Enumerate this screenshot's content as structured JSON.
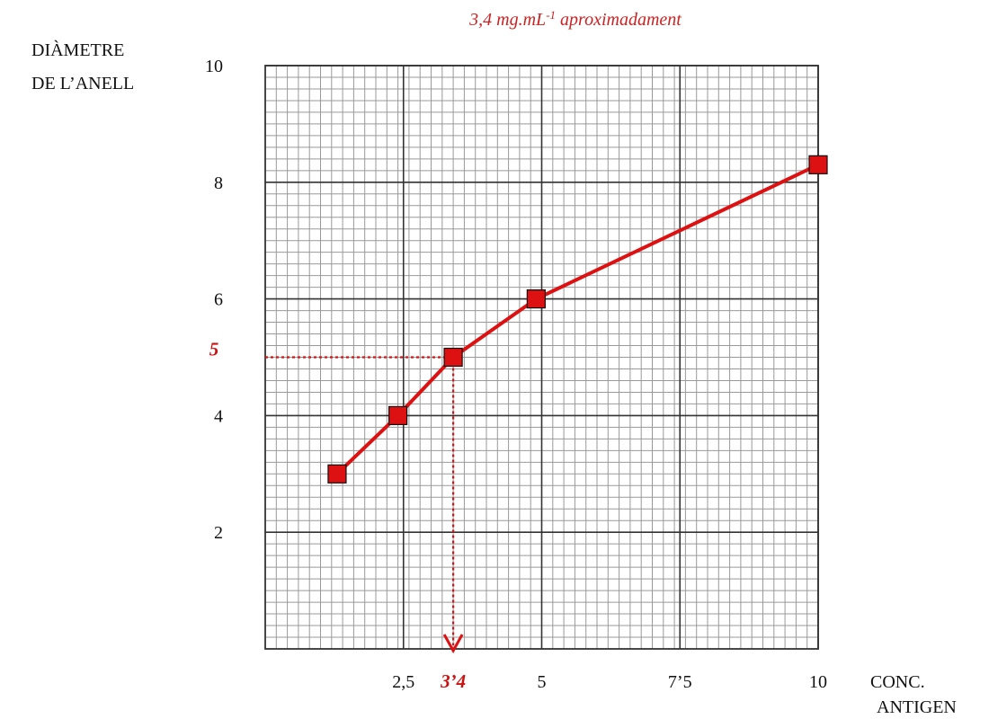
{
  "chart_data": {
    "type": "line",
    "title": "3,4 mg.mL-1 aproximadament",
    "title_base": "3,4 mg.mL",
    "title_sup": "-1",
    "title_rest": " aproximadament",
    "ylabel": [
      "DIÀMETRE",
      "DE L’ANELL"
    ],
    "xlabel": [
      "CONC.",
      "ANTIGEN"
    ],
    "xlim": [
      0,
      10
    ],
    "ylim": [
      0,
      10
    ],
    "x_ticks": [
      {
        "value": 2.5,
        "label": "2,5"
      },
      {
        "value": 5,
        "label": "5"
      },
      {
        "value": 7.5,
        "label": "7’5"
      },
      {
        "value": 10,
        "label": "10"
      }
    ],
    "y_ticks": [
      {
        "value": 2,
        "label": "2"
      },
      {
        "value": 4,
        "label": "4"
      },
      {
        "value": 6,
        "label": "6"
      },
      {
        "value": 8,
        "label": "8"
      },
      {
        "value": 10,
        "label": "10"
      }
    ],
    "series": [
      {
        "x": [
          1.3,
          2.4,
          3.4,
          4.9,
          10
        ],
        "y": [
          3.0,
          4.0,
          5.0,
          6.0,
          8.3
        ],
        "color": "#dd1111",
        "marker": "square"
      }
    ],
    "annotation": {
      "x": 3.4,
      "y": 5,
      "x_label": "3’4",
      "y_label": "5",
      "color": "#dd1111"
    },
    "grid": true,
    "grid_color": "#999999",
    "major_grid_color": "#333333"
  }
}
